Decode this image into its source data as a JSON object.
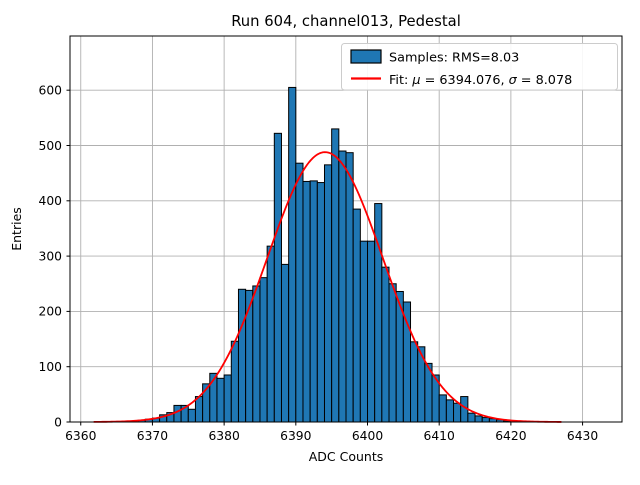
{
  "title": "Run 604, channel013, Pedestal",
  "xlabel": "ADC Counts",
  "ylabel": "Entries",
  "legend": {
    "samples_label": "Samples: RMS=8.03",
    "fit_prefix": "Fit: ",
    "mu_symbol": "μ",
    "mu_eq": " = 6394.076, ",
    "sigma_symbol": "σ",
    "sigma_eq": " = 8.078"
  },
  "colors": {
    "bar_fill": "#1f77b4",
    "bar_edge": "#000000",
    "fit_line": "#ff0000",
    "grid": "#b0b0b0",
    "spine": "#000000",
    "legend_border": "#cccccc",
    "legend_bg": "#ffffff"
  },
  "chart_data": {
    "type": "bar",
    "subtype": "histogram",
    "title": "Run 604, channel013, Pedestal",
    "xlabel": "ADC Counts",
    "ylabel": "Entries",
    "bin_start": 6368,
    "bin_width": 1,
    "values": [
      3,
      5,
      7,
      13,
      17,
      30,
      30,
      23,
      46,
      69,
      88,
      79,
      85,
      146,
      240,
      238,
      246,
      261,
      318,
      522,
      285,
      605,
      468,
      435,
      436,
      433,
      465,
      530,
      490,
      487,
      385,
      327,
      327,
      395,
      280,
      250,
      236,
      217,
      145,
      136,
      106,
      85,
      49,
      40,
      34,
      46,
      16,
      11,
      8,
      6,
      4,
      2
    ],
    "fit": {
      "type": "gaussian",
      "mu": 6394.076,
      "sigma": 8.078,
      "amplitude": 488,
      "x_start": 6361.8,
      "x_end": 6427.2
    },
    "x_ticks": [
      6360,
      6370,
      6380,
      6390,
      6400,
      6410,
      6420,
      6430
    ],
    "y_ticks": [
      0,
      100,
      200,
      300,
      400,
      500,
      600
    ],
    "xlim": [
      6358.5,
      6435.5
    ],
    "ylim": [
      0,
      698
    ],
    "grid": true,
    "legend_position": "upper right",
    "legend_entries": [
      "Samples: RMS=8.03",
      "Fit: μ = 6394.076, σ = 8.078"
    ]
  }
}
